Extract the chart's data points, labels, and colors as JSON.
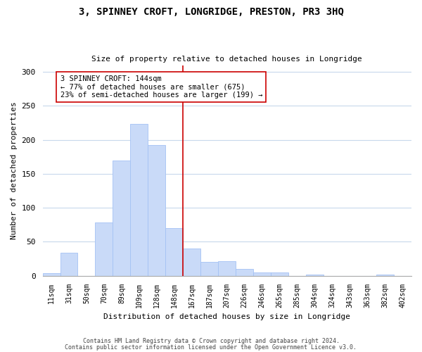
{
  "title": "3, SPINNEY CROFT, LONGRIDGE, PRESTON, PR3 3HQ",
  "subtitle": "Size of property relative to detached houses in Longridge",
  "xlabel": "Distribution of detached houses by size in Longridge",
  "ylabel": "Number of detached properties",
  "bar_labels": [
    "11sqm",
    "31sqm",
    "50sqm",
    "70sqm",
    "89sqm",
    "109sqm",
    "128sqm",
    "148sqm",
    "167sqm",
    "187sqm",
    "207sqm",
    "226sqm",
    "246sqm",
    "265sqm",
    "285sqm",
    "304sqm",
    "324sqm",
    "343sqm",
    "363sqm",
    "382sqm",
    "402sqm"
  ],
  "bar_heights": [
    4,
    34,
    0,
    78,
    170,
    224,
    192,
    70,
    40,
    20,
    21,
    10,
    5,
    5,
    0,
    2,
    0,
    0,
    0,
    2,
    0
  ],
  "bar_color": "#c9daf8",
  "bar_edge_color": "#a4c2f4",
  "vline_position": 7.5,
  "annotation_title": "3 SPINNEY CROFT: 144sqm",
  "annotation_line1": "← 77% of detached houses are smaller (675)",
  "annotation_line2": "23% of semi-detached houses are larger (199) →",
  "vline_color": "#cc0000",
  "annotation_box_color": "#ffffff",
  "annotation_box_edgecolor": "#cc0000",
  "ylim": [
    0,
    310
  ],
  "yticks": [
    0,
    50,
    100,
    150,
    200,
    250,
    300
  ],
  "footer1": "Contains HM Land Registry data © Crown copyright and database right 2024.",
  "footer2": "Contains public sector information licensed under the Open Government Licence v3.0.",
  "bg_color": "#ffffff",
  "grid_color": "#c8d8ec"
}
